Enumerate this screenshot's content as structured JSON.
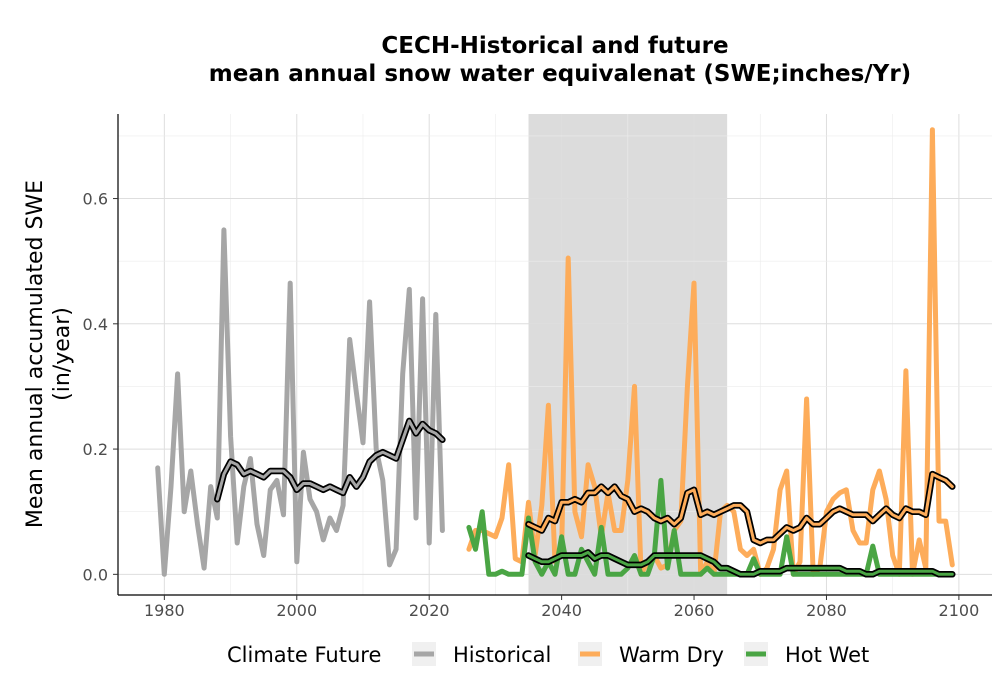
{
  "chart_data": {
    "type": "line",
    "title": [
      "CECH-Historical and future",
      "mean annual snow water equivalenat (SWE;inches/Yr)"
    ],
    "xlabel": "",
    "ylabel": [
      "Mean annual accumulated SWE",
      "(in/year)"
    ],
    "xlim": [
      1973,
      2105
    ],
    "ylim": [
      -0.033,
      0.735
    ],
    "x_ticks": [
      1980,
      2000,
      2020,
      2040,
      2060,
      2080,
      2100
    ],
    "y_ticks": [
      0.0,
      0.2,
      0.4,
      0.6
    ],
    "y_tick_labels": [
      "0.0",
      "0.2",
      "0.4",
      "0.6"
    ],
    "shaded_period": [
      2035,
      2065
    ],
    "grid": true,
    "legend": {
      "title": "Climate Future",
      "position": "bottom",
      "entries": [
        "Historical",
        "Warm Dry",
        "Hot Wet"
      ]
    },
    "series": [
      {
        "name": "Historical",
        "color": "#a6a6a6",
        "x": [
          1979,
          1980,
          1981,
          1982,
          1983,
          1984,
          1985,
          1986,
          1987,
          1988,
          1989,
          1990,
          1991,
          1992,
          1993,
          1994,
          1995,
          1996,
          1997,
          1998,
          1999,
          2000,
          2001,
          2002,
          2003,
          2004,
          2005,
          2006,
          2007,
          2008,
          2009,
          2010,
          2011,
          2012,
          2013,
          2014,
          2015,
          2016,
          2017,
          2018,
          2019,
          2020,
          2021,
          2022
        ],
        "values": [
          0.17,
          0.0,
          0.14,
          0.32,
          0.1,
          0.165,
          0.08,
          0.01,
          0.14,
          0.09,
          0.55,
          0.22,
          0.05,
          0.14,
          0.185,
          0.08,
          0.03,
          0.135,
          0.15,
          0.095,
          0.465,
          0.02,
          0.195,
          0.12,
          0.1,
          0.055,
          0.09,
          0.07,
          0.11,
          0.375,
          0.29,
          0.21,
          0.435,
          0.2,
          0.15,
          0.015,
          0.04,
          0.32,
          0.455,
          0.09,
          0.44,
          0.05,
          0.415,
          0.07
        ],
        "smooth_x": [
          1988,
          1989,
          1990,
          1991,
          1992,
          1993,
          1994,
          1995,
          1996,
          1997,
          1998,
          1999,
          2000,
          2001,
          2002,
          2003,
          2004,
          2005,
          2006,
          2007,
          2008,
          2009,
          2010,
          2011,
          2012,
          2013,
          2014,
          2015,
          2016,
          2017,
          2018,
          2019,
          2020,
          2021,
          2022
        ],
        "smooth_values": [
          0.12,
          0.16,
          0.18,
          0.175,
          0.16,
          0.165,
          0.16,
          0.155,
          0.165,
          0.165,
          0.165,
          0.155,
          0.135,
          0.145,
          0.145,
          0.14,
          0.135,
          0.14,
          0.135,
          0.13,
          0.155,
          0.14,
          0.155,
          0.18,
          0.19,
          0.195,
          0.19,
          0.185,
          0.215,
          0.245,
          0.225,
          0.24,
          0.23,
          0.225,
          0.215
        ]
      },
      {
        "name": "Warm Dry",
        "color": "#fdac5a",
        "x": [
          2026,
          2027,
          2028,
          2029,
          2030,
          2031,
          2032,
          2033,
          2034,
          2035,
          2036,
          2037,
          2038,
          2039,
          2040,
          2041,
          2042,
          2043,
          2044,
          2045,
          2046,
          2047,
          2048,
          2049,
          2050,
          2051,
          2052,
          2053,
          2054,
          2055,
          2056,
          2057,
          2058,
          2059,
          2060,
          2061,
          2062,
          2063,
          2064,
          2065,
          2066,
          2067,
          2068,
          2069,
          2070,
          2071,
          2072,
          2073,
          2074,
          2075,
          2076,
          2077,
          2078,
          2079,
          2080,
          2081,
          2082,
          2083,
          2084,
          2085,
          2086,
          2087,
          2088,
          2089,
          2090,
          2091,
          2092,
          2093,
          2094,
          2095,
          2096,
          2097,
          2098,
          2099
        ],
        "values": [
          0.04,
          0.07,
          0.07,
          0.065,
          0.06,
          0.09,
          0.175,
          0.025,
          0.02,
          0.115,
          0.03,
          0.11,
          0.27,
          0.02,
          0.04,
          0.505,
          0.1,
          0.06,
          0.175,
          0.14,
          0.06,
          0.13,
          0.07,
          0.07,
          0.15,
          0.3,
          0.0,
          0.02,
          0.03,
          0.01,
          0.015,
          0.07,
          0.085,
          0.3,
          0.465,
          0.0,
          0.02,
          0.0,
          0.1,
          0.11,
          0.1,
          0.04,
          0.03,
          0.04,
          0.0,
          0.01,
          0.04,
          0.135,
          0.165,
          0.0,
          0.02,
          0.28,
          0.0,
          0.01,
          0.1,
          0.12,
          0.13,
          0.135,
          0.07,
          0.05,
          0.05,
          0.135,
          0.165,
          0.12,
          0.03,
          0.0,
          0.325,
          0.0,
          0.055,
          0.01,
          0.71,
          0.085,
          0.085,
          0.015
        ],
        "smooth_x": [
          2035,
          2036,
          2037,
          2038,
          2039,
          2040,
          2041,
          2042,
          2043,
          2044,
          2045,
          2046,
          2047,
          2048,
          2049,
          2050,
          2051,
          2052,
          2053,
          2054,
          2055,
          2056,
          2057,
          2058,
          2059,
          2060,
          2061,
          2062,
          2063,
          2064,
          2065,
          2066,
          2067,
          2068,
          2069,
          2070,
          2071,
          2072,
          2073,
          2074,
          2075,
          2076,
          2077,
          2078,
          2079,
          2080,
          2081,
          2082,
          2083,
          2084,
          2085,
          2086,
          2087,
          2088,
          2089,
          2090,
          2091,
          2092,
          2093,
          2094,
          2095,
          2096,
          2097,
          2098,
          2099
        ],
        "smooth_values": [
          0.08,
          0.075,
          0.07,
          0.09,
          0.085,
          0.115,
          0.115,
          0.12,
          0.115,
          0.13,
          0.13,
          0.14,
          0.13,
          0.14,
          0.125,
          0.12,
          0.1,
          0.105,
          0.1,
          0.09,
          0.085,
          0.09,
          0.08,
          0.09,
          0.13,
          0.135,
          0.095,
          0.1,
          0.095,
          0.1,
          0.105,
          0.11,
          0.11,
          0.1,
          0.055,
          0.05,
          0.055,
          0.055,
          0.065,
          0.075,
          0.07,
          0.075,
          0.09,
          0.08,
          0.08,
          0.09,
          0.1,
          0.105,
          0.1,
          0.095,
          0.095,
          0.095,
          0.085,
          0.095,
          0.105,
          0.095,
          0.09,
          0.105,
          0.1,
          0.1,
          0.095,
          0.16,
          0.155,
          0.15,
          0.14
        ]
      },
      {
        "name": "Hot Wet",
        "color": "#4aa544",
        "x": [
          2026,
          2027,
          2028,
          2029,
          2030,
          2031,
          2032,
          2033,
          2034,
          2035,
          2036,
          2037,
          2038,
          2039,
          2040,
          2041,
          2042,
          2043,
          2044,
          2045,
          2046,
          2047,
          2048,
          2049,
          2050,
          2051,
          2052,
          2053,
          2054,
          2055,
          2056,
          2057,
          2058,
          2059,
          2060,
          2061,
          2062,
          2063,
          2064,
          2065,
          2066,
          2067,
          2068,
          2069,
          2070,
          2071,
          2072,
          2073,
          2074,
          2075,
          2076,
          2077,
          2078,
          2079,
          2080,
          2081,
          2082,
          2083,
          2084,
          2085,
          2086,
          2087,
          2088,
          2089,
          2090,
          2091,
          2092,
          2093,
          2094,
          2095,
          2096,
          2097,
          2098,
          2099
        ],
        "values": [
          0.075,
          0.04,
          0.1,
          0.0,
          0.0,
          0.005,
          0.0,
          0.0,
          0.0,
          0.09,
          0.02,
          0.0,
          0.02,
          0.0,
          0.06,
          0.0,
          0.0,
          0.04,
          0.02,
          0.0,
          0.075,
          0.0,
          0.0,
          0.0,
          0.01,
          0.03,
          0.0,
          0.0,
          0.03,
          0.15,
          0.01,
          0.07,
          0.0,
          0.0,
          0.0,
          0.0,
          0.01,
          0.0,
          0.0,
          0.0,
          0.0,
          0.0,
          0.0,
          0.025,
          0.0,
          0.0,
          0.0,
          0.0,
          0.06,
          0.0,
          0.0,
          0.0,
          0.0,
          0.0,
          0.0,
          0.0,
          0.0,
          0.0,
          0.0,
          0.0,
          0.0,
          0.045,
          0.0,
          0.0,
          0.0,
          0.0,
          0.0,
          0.0,
          0.0,
          0.0,
          0.0,
          0.0,
          0.0,
          0.0
        ],
        "smooth_x": [
          2035,
          2036,
          2037,
          2038,
          2039,
          2040,
          2041,
          2042,
          2043,
          2044,
          2045,
          2046,
          2047,
          2048,
          2049,
          2050,
          2051,
          2052,
          2053,
          2054,
          2055,
          2056,
          2057,
          2058,
          2059,
          2060,
          2061,
          2062,
          2063,
          2064,
          2065,
          2066,
          2067,
          2068,
          2069,
          2070,
          2071,
          2072,
          2073,
          2074,
          2075,
          2076,
          2077,
          2078,
          2079,
          2080,
          2081,
          2082,
          2083,
          2084,
          2085,
          2086,
          2087,
          2088,
          2089,
          2090,
          2091,
          2092,
          2093,
          2094,
          2095,
          2096,
          2097,
          2098,
          2099
        ],
        "smooth_values": [
          0.03,
          0.025,
          0.02,
          0.02,
          0.025,
          0.03,
          0.03,
          0.03,
          0.03,
          0.035,
          0.025,
          0.03,
          0.03,
          0.025,
          0.02,
          0.015,
          0.015,
          0.015,
          0.02,
          0.03,
          0.03,
          0.03,
          0.03,
          0.03,
          0.03,
          0.03,
          0.03,
          0.025,
          0.02,
          0.01,
          0.01,
          0.005,
          0.0,
          0.0,
          0.0,
          0.005,
          0.005,
          0.005,
          0.005,
          0.01,
          0.01,
          0.01,
          0.01,
          0.01,
          0.01,
          0.01,
          0.01,
          0.01,
          0.005,
          0.005,
          0.005,
          0.0,
          0.0,
          0.005,
          0.005,
          0.005,
          0.005,
          0.005,
          0.005,
          0.005,
          0.005,
          0.005,
          0.0,
          0.0,
          0.0
        ]
      }
    ]
  }
}
